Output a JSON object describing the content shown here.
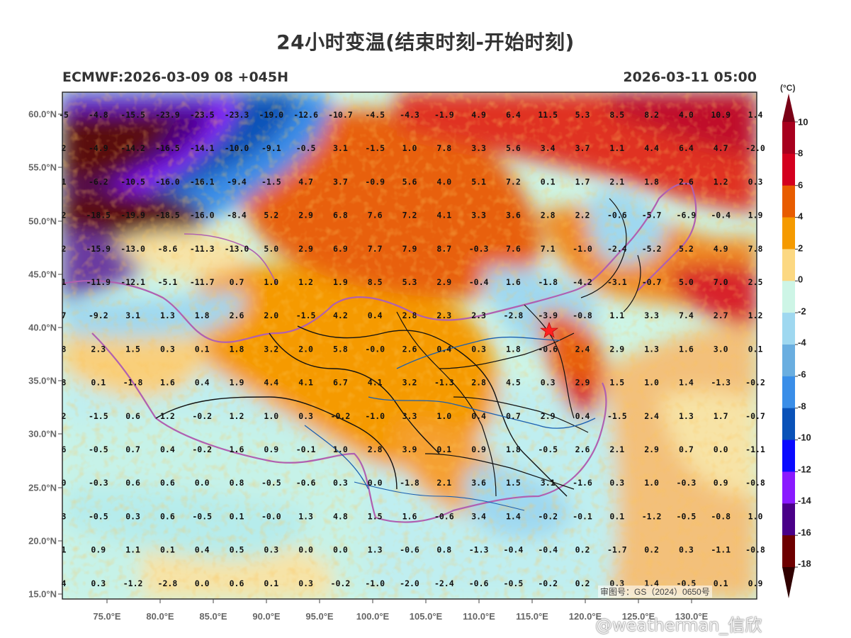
{
  "header": {
    "title": "24小时变温(结束时刻-开始时刻)",
    "model_run": "ECMWF:2026-03-09 08 +045H",
    "valid_time": "2026-03-11 05:00"
  },
  "colorbar": {
    "unit": "(°C)",
    "levels": [
      "10",
      "8",
      "6",
      "4",
      "2",
      "0",
      "-2",
      "-4",
      "-6",
      "-8",
      "-10",
      "-12",
      "-14",
      "-16",
      "-18"
    ],
    "colors": [
      "#7a0016",
      "#a8001e",
      "#d4001e",
      "#e85c00",
      "#f59a00",
      "#fcd882",
      "#cdf5e6",
      "#9fd8f0",
      "#6aaee0",
      "#3a8ee8",
      "#0a52b8",
      "#0a0aff",
      "#8a1aff",
      "#4a0088",
      "#6e0000",
      "#300000"
    ]
  },
  "axes": {
    "lat_labels": [
      "60.0°N",
      "55.0°N",
      "50.0°N",
      "45.0°N",
      "40.0°N",
      "35.0°N",
      "30.0°N",
      "25.0°N",
      "20.0°N",
      "15.0°N"
    ],
    "lon_labels": [
      "75.0°E",
      "80.0°E",
      "85.0°E",
      "90.0°E",
      "95.0°E",
      "100.0°E",
      "105.0°E",
      "110.0°E",
      "115.0°E",
      "120.0°E",
      "125.0°E",
      "130.0°E"
    ]
  },
  "map_values": {
    "rows": [
      [
        "-5",
        "-4.8",
        "-15.5",
        "-23.9",
        "-23.5",
        "-23.3",
        "-19.0",
        "-12.6",
        "-10.7",
        "-4.5",
        "-4.3",
        "-1.9",
        "4.9",
        "6.4",
        "11.5",
        "5.3",
        "8.5",
        "8.2",
        "4.0",
        "10.9",
        "1.4"
      ],
      [
        "2",
        "-4.9",
        "-14.2",
        "-16.5",
        "-14.1",
        "-10.0",
        "-9.1",
        "-0.5",
        "3.1",
        "-1.5",
        "1.0",
        "7.8",
        "3.3",
        "5.6",
        "3.4",
        "3.7",
        "1.1",
        "4.4",
        "6.4",
        "4.7",
        "-2.0"
      ],
      [
        "1",
        "-6.2",
        "-10.5",
        "-16.0",
        "-16.1",
        "-9.4",
        "-1.5",
        "4.7",
        "3.7",
        "-0.9",
        "5.6",
        "4.0",
        "5.1",
        "7.2",
        "0.1",
        "1.7",
        "2.1",
        "1.8",
        "2.6",
        "1.2",
        "0.3"
      ],
      [
        "2",
        "-18.5",
        "-19.9",
        "-18.5",
        "-16.0",
        "-8.4",
        "5.2",
        "2.9",
        "6.8",
        "7.6",
        "7.2",
        "4.1",
        "3.3",
        "3.6",
        "2.8",
        "2.2",
        "-0.6",
        "-5.7",
        "-6.9",
        "-0.4",
        "1.9"
      ],
      [
        "2",
        "-15.9",
        "-13.0",
        "-8.6",
        "-11.3",
        "-13.0",
        "5.0",
        "2.9",
        "6.9",
        "7.7",
        "7.9",
        "8.7",
        "-0.3",
        "7.6",
        "7.1",
        "-1.0",
        "-2.4",
        "-5.2",
        "5.2",
        "4.9",
        "7.8"
      ],
      [
        "1",
        "-11.9",
        "-12.1",
        "-5.1",
        "-11.7",
        "0.7",
        "1.0",
        "1.2",
        "1.9",
        "8.5",
        "5.3",
        "2.9",
        "-0.4",
        "1.6",
        "-1.8",
        "-4.2",
        "-3.1",
        "-0.7",
        "5.0",
        "7.0",
        "2.5"
      ],
      [
        "7",
        "-9.2",
        "3.1",
        "1.3",
        "1.8",
        "2.6",
        "2.0",
        "-1.5",
        "4.2",
        "0.4",
        "2.8",
        "2.3",
        "2.3",
        "-2.8",
        "-3.9",
        "-0.8",
        "1.1",
        "3.3",
        "7.4",
        "2.7",
        "1.2"
      ],
      [
        "8",
        "2.3",
        "1.5",
        "0.3",
        "0.1",
        "1.8",
        "3.2",
        "2.0",
        "5.8",
        "-0.0",
        "2.6",
        "0.4",
        "0.3",
        "1.8",
        "-0.6",
        "2.4",
        "2.9",
        "1.3",
        "1.6",
        "3.0",
        "0.1"
      ],
      [
        "8",
        "0.1",
        "-1.8",
        "1.6",
        "0.4",
        "1.9",
        "4.4",
        "4.1",
        "6.7",
        "4.1",
        "3.2",
        "-1.3",
        "2.8",
        "4.5",
        "0.3",
        "2.9",
        "1.5",
        "1.0",
        "1.4",
        "-1.3",
        "-0.2"
      ],
      [
        "2",
        "-1.5",
        "0.6",
        "1.2",
        "-0.2",
        "1.2",
        "1.0",
        "0.3",
        "-0.2",
        "-1.0",
        "3.3",
        "1.0",
        "0.4",
        "0.7",
        "2.9",
        "0.4",
        "-1.5",
        "2.4",
        "1.3",
        "1.7",
        "-0.7"
      ],
      [
        "6",
        "-0.5",
        "0.7",
        "0.4",
        "-0.2",
        "1.6",
        "0.9",
        "-0.1",
        "1.0",
        "2.8",
        "3.9",
        "0.1",
        "0.9",
        "1.8",
        "-0.5",
        "2.6",
        "2.1",
        "2.9",
        "0.7",
        "0.0",
        "-1.1"
      ],
      [
        "0",
        "-0.3",
        "0.6",
        "0.6",
        "0.0",
        "0.8",
        "-0.5",
        "-0.6",
        "0.3",
        "0.0",
        "-1.8",
        "2.1",
        "3.6",
        "1.5",
        "3.1",
        "-1.6",
        "0.3",
        "1.0",
        "-0.3",
        "0.9",
        "-0.8"
      ],
      [
        "3",
        "-0.5",
        "0.3",
        "0.6",
        "-0.5",
        "0.1",
        "-0.0",
        "1.3",
        "4.8",
        "1.5",
        "1.6",
        "-0.6",
        "3.4",
        "1.4",
        "-0.2",
        "-0.1",
        "0.1",
        "-1.2",
        "-0.5",
        "-0.8",
        "1.0"
      ],
      [
        "1",
        "0.9",
        "1.1",
        "0.1",
        "0.4",
        "0.5",
        "0.3",
        "0.0",
        "0.0",
        "1.3",
        "-0.6",
        "0.8",
        "-1.3",
        "-0.4",
        "-0.4",
        "0.2",
        "-1.7",
        "0.2",
        "0.3",
        "-1.1",
        "-0.8"
      ],
      [
        "4",
        "0.3",
        "-1.2",
        "-2.8",
        "0.0",
        "0.6",
        "0.1",
        "0.3",
        "-0.2",
        "-1.0",
        "-2.0",
        "-2.4",
        "-0.6",
        "-0.5",
        "-0.2",
        "0.2",
        "0.3",
        "1.4",
        "-0.5",
        "0.1",
        "0.9"
      ]
    ]
  },
  "watermark": "审图号：GS（2024）0650号",
  "credit": "@weatherman_信欣"
}
